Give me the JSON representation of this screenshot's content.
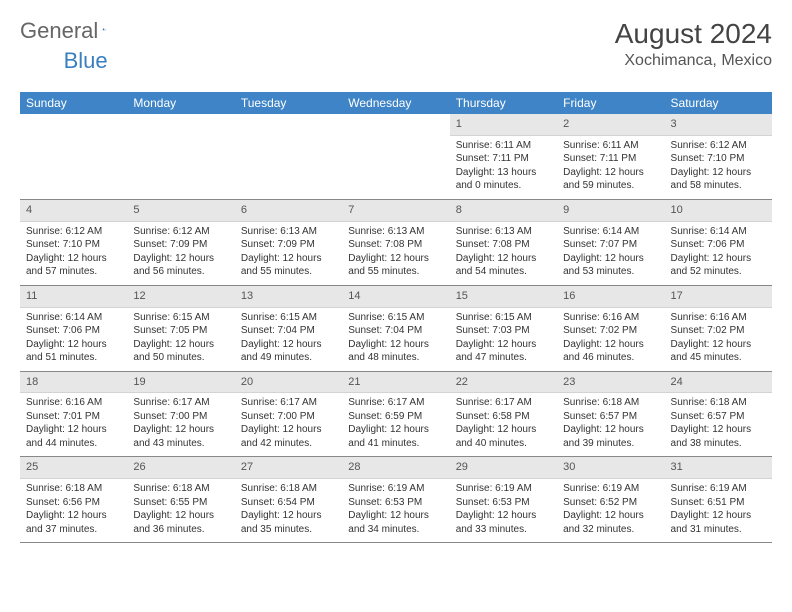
{
  "brand": {
    "part1": "General",
    "part2": "Blue"
  },
  "title": "August 2024",
  "location": "Xochimanca, Mexico",
  "colors": {
    "header_bg": "#3e84c6",
    "header_text": "#ffffff",
    "daynum_bg": "#e7e7e7",
    "daynum_text": "#555555",
    "body_text": "#333333",
    "brand_gray": "#666666",
    "brand_blue": "#3a7fbf",
    "rule": "#888888",
    "page_bg": "#ffffff"
  },
  "typography": {
    "title_fontsize": 28,
    "location_fontsize": 16,
    "dayheader_fontsize": 12,
    "cell_fontsize": 10
  },
  "day_headers": [
    "Sunday",
    "Monday",
    "Tuesday",
    "Wednesday",
    "Thursday",
    "Friday",
    "Saturday"
  ],
  "weeks": [
    [
      {
        "n": "",
        "sr": "",
        "ss": "",
        "dl": ""
      },
      {
        "n": "",
        "sr": "",
        "ss": "",
        "dl": ""
      },
      {
        "n": "",
        "sr": "",
        "ss": "",
        "dl": ""
      },
      {
        "n": "",
        "sr": "",
        "ss": "",
        "dl": ""
      },
      {
        "n": "1",
        "sr": "Sunrise: 6:11 AM",
        "ss": "Sunset: 7:11 PM",
        "dl": "Daylight: 13 hours and 0 minutes."
      },
      {
        "n": "2",
        "sr": "Sunrise: 6:11 AM",
        "ss": "Sunset: 7:11 PM",
        "dl": "Daylight: 12 hours and 59 minutes."
      },
      {
        "n": "3",
        "sr": "Sunrise: 6:12 AM",
        "ss": "Sunset: 7:10 PM",
        "dl": "Daylight: 12 hours and 58 minutes."
      }
    ],
    [
      {
        "n": "4",
        "sr": "Sunrise: 6:12 AM",
        "ss": "Sunset: 7:10 PM",
        "dl": "Daylight: 12 hours and 57 minutes."
      },
      {
        "n": "5",
        "sr": "Sunrise: 6:12 AM",
        "ss": "Sunset: 7:09 PM",
        "dl": "Daylight: 12 hours and 56 minutes."
      },
      {
        "n": "6",
        "sr": "Sunrise: 6:13 AM",
        "ss": "Sunset: 7:09 PM",
        "dl": "Daylight: 12 hours and 55 minutes."
      },
      {
        "n": "7",
        "sr": "Sunrise: 6:13 AM",
        "ss": "Sunset: 7:08 PM",
        "dl": "Daylight: 12 hours and 55 minutes."
      },
      {
        "n": "8",
        "sr": "Sunrise: 6:13 AM",
        "ss": "Sunset: 7:08 PM",
        "dl": "Daylight: 12 hours and 54 minutes."
      },
      {
        "n": "9",
        "sr": "Sunrise: 6:14 AM",
        "ss": "Sunset: 7:07 PM",
        "dl": "Daylight: 12 hours and 53 minutes."
      },
      {
        "n": "10",
        "sr": "Sunrise: 6:14 AM",
        "ss": "Sunset: 7:06 PM",
        "dl": "Daylight: 12 hours and 52 minutes."
      }
    ],
    [
      {
        "n": "11",
        "sr": "Sunrise: 6:14 AM",
        "ss": "Sunset: 7:06 PM",
        "dl": "Daylight: 12 hours and 51 minutes."
      },
      {
        "n": "12",
        "sr": "Sunrise: 6:15 AM",
        "ss": "Sunset: 7:05 PM",
        "dl": "Daylight: 12 hours and 50 minutes."
      },
      {
        "n": "13",
        "sr": "Sunrise: 6:15 AM",
        "ss": "Sunset: 7:04 PM",
        "dl": "Daylight: 12 hours and 49 minutes."
      },
      {
        "n": "14",
        "sr": "Sunrise: 6:15 AM",
        "ss": "Sunset: 7:04 PM",
        "dl": "Daylight: 12 hours and 48 minutes."
      },
      {
        "n": "15",
        "sr": "Sunrise: 6:15 AM",
        "ss": "Sunset: 7:03 PM",
        "dl": "Daylight: 12 hours and 47 minutes."
      },
      {
        "n": "16",
        "sr": "Sunrise: 6:16 AM",
        "ss": "Sunset: 7:02 PM",
        "dl": "Daylight: 12 hours and 46 minutes."
      },
      {
        "n": "17",
        "sr": "Sunrise: 6:16 AM",
        "ss": "Sunset: 7:02 PM",
        "dl": "Daylight: 12 hours and 45 minutes."
      }
    ],
    [
      {
        "n": "18",
        "sr": "Sunrise: 6:16 AM",
        "ss": "Sunset: 7:01 PM",
        "dl": "Daylight: 12 hours and 44 minutes."
      },
      {
        "n": "19",
        "sr": "Sunrise: 6:17 AM",
        "ss": "Sunset: 7:00 PM",
        "dl": "Daylight: 12 hours and 43 minutes."
      },
      {
        "n": "20",
        "sr": "Sunrise: 6:17 AM",
        "ss": "Sunset: 7:00 PM",
        "dl": "Daylight: 12 hours and 42 minutes."
      },
      {
        "n": "21",
        "sr": "Sunrise: 6:17 AM",
        "ss": "Sunset: 6:59 PM",
        "dl": "Daylight: 12 hours and 41 minutes."
      },
      {
        "n": "22",
        "sr": "Sunrise: 6:17 AM",
        "ss": "Sunset: 6:58 PM",
        "dl": "Daylight: 12 hours and 40 minutes."
      },
      {
        "n": "23",
        "sr": "Sunrise: 6:18 AM",
        "ss": "Sunset: 6:57 PM",
        "dl": "Daylight: 12 hours and 39 minutes."
      },
      {
        "n": "24",
        "sr": "Sunrise: 6:18 AM",
        "ss": "Sunset: 6:57 PM",
        "dl": "Daylight: 12 hours and 38 minutes."
      }
    ],
    [
      {
        "n": "25",
        "sr": "Sunrise: 6:18 AM",
        "ss": "Sunset: 6:56 PM",
        "dl": "Daylight: 12 hours and 37 minutes."
      },
      {
        "n": "26",
        "sr": "Sunrise: 6:18 AM",
        "ss": "Sunset: 6:55 PM",
        "dl": "Daylight: 12 hours and 36 minutes."
      },
      {
        "n": "27",
        "sr": "Sunrise: 6:18 AM",
        "ss": "Sunset: 6:54 PM",
        "dl": "Daylight: 12 hours and 35 minutes."
      },
      {
        "n": "28",
        "sr": "Sunrise: 6:19 AM",
        "ss": "Sunset: 6:53 PM",
        "dl": "Daylight: 12 hours and 34 minutes."
      },
      {
        "n": "29",
        "sr": "Sunrise: 6:19 AM",
        "ss": "Sunset: 6:53 PM",
        "dl": "Daylight: 12 hours and 33 minutes."
      },
      {
        "n": "30",
        "sr": "Sunrise: 6:19 AM",
        "ss": "Sunset: 6:52 PM",
        "dl": "Daylight: 12 hours and 32 minutes."
      },
      {
        "n": "31",
        "sr": "Sunrise: 6:19 AM",
        "ss": "Sunset: 6:51 PM",
        "dl": "Daylight: 12 hours and 31 minutes."
      }
    ]
  ]
}
